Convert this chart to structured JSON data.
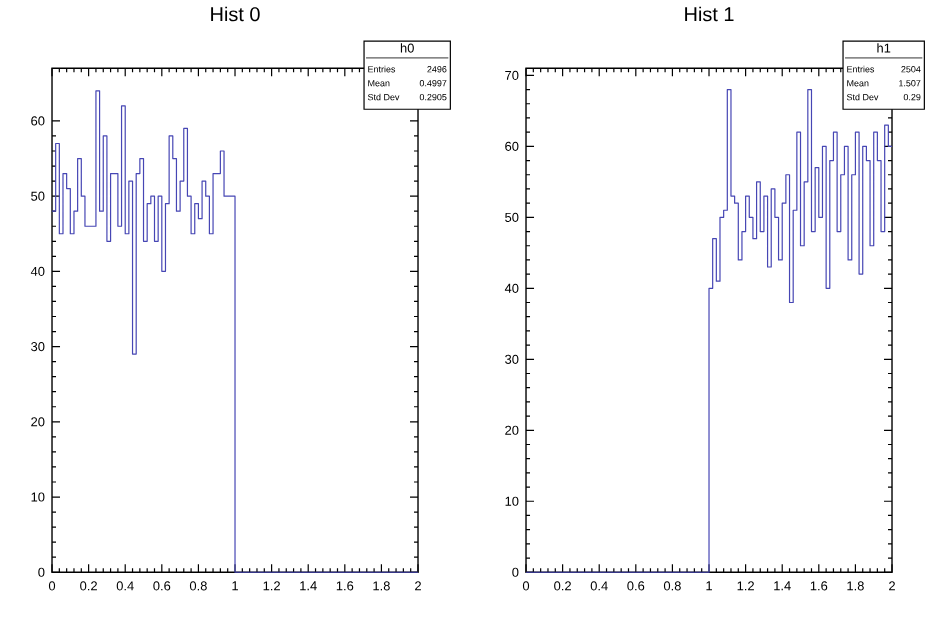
{
  "chart_data": [
    {
      "type": "histogram",
      "title": "Hist 0",
      "color": "#4646b4",
      "bins": [
        0,
        0.02,
        0.04,
        0.06,
        0.08,
        0.1,
        0.12,
        0.14,
        0.16,
        0.18,
        0.2,
        0.22,
        0.24,
        0.26,
        0.28,
        0.3,
        0.32,
        0.34,
        0.36,
        0.38,
        0.4,
        0.42,
        0.44,
        0.46,
        0.48,
        0.5,
        0.52,
        0.54,
        0.56,
        0.58,
        0.6,
        0.62,
        0.64,
        0.66,
        0.68,
        0.7,
        0.72,
        0.74,
        0.76,
        0.78,
        0.8,
        0.82,
        0.84,
        0.86,
        0.88,
        0.9,
        0.92,
        0.94,
        0.96,
        0.98,
        1,
        1.02,
        1.04,
        1.06,
        1.08,
        1.1,
        1.12,
        1.14,
        1.16,
        1.18,
        1.2,
        1.22,
        1.24,
        1.26,
        1.28,
        1.3,
        1.32,
        1.34,
        1.36,
        1.38,
        1.4,
        1.42,
        1.44,
        1.46,
        1.48,
        1.5,
        1.52,
        1.54,
        1.56,
        1.58,
        1.6,
        1.62,
        1.64,
        1.66,
        1.68,
        1.7,
        1.72,
        1.74,
        1.76,
        1.78,
        1.8,
        1.82,
        1.84,
        1.86,
        1.88,
        1.9,
        1.92,
        1.94,
        1.96,
        1.98,
        2
      ],
      "values": [
        48,
        57,
        45,
        53,
        51,
        45,
        48,
        55,
        50,
        46,
        46,
        46,
        64,
        48,
        58,
        44,
        53,
        53,
        46,
        62,
        45,
        52,
        29,
        53,
        55,
        44,
        49,
        50,
        44,
        50,
        40,
        49,
        58,
        55,
        48,
        52,
        59,
        50,
        45,
        49,
        47,
        52,
        50,
        45,
        53,
        53,
        56,
        50,
        50,
        50,
        0,
        0,
        0,
        0,
        0,
        0,
        0,
        0,
        0,
        0,
        0,
        0,
        0,
        0,
        0,
        0,
        0,
        0,
        0,
        0,
        0,
        0,
        0,
        0,
        0,
        0,
        0,
        0,
        0,
        0,
        0,
        0,
        0,
        0,
        0,
        0,
        0,
        0,
        0,
        0,
        0,
        0,
        0,
        0,
        0,
        0,
        0,
        0,
        0,
        0
      ],
      "xlim": [
        0,
        2
      ],
      "ylim": [
        0,
        67
      ],
      "xticks": [
        0,
        0.2,
        0.4,
        0.6,
        0.8,
        1,
        1.2,
        1.4,
        1.6,
        1.8,
        2
      ],
      "yticks": [
        0,
        10,
        20,
        30,
        40,
        50,
        60
      ],
      "annotations": [
        "h0",
        "Entries",
        "2496",
        "Mean",
        "0.4997",
        "Std Dev",
        "0.2905"
      ]
    },
    {
      "type": "histogram",
      "title": "Hist 1",
      "color": "#4646b4",
      "bins": [
        0,
        0.02,
        0.04,
        0.06,
        0.08,
        0.1,
        0.12,
        0.14,
        0.16,
        0.18,
        0.2,
        0.22,
        0.24,
        0.26,
        0.28,
        0.3,
        0.32,
        0.34,
        0.36,
        0.38,
        0.4,
        0.42,
        0.44,
        0.46,
        0.48,
        0.5,
        0.52,
        0.54,
        0.56,
        0.58,
        0.6,
        0.62,
        0.64,
        0.66,
        0.68,
        0.7,
        0.72,
        0.74,
        0.76,
        0.78,
        0.8,
        0.82,
        0.84,
        0.86,
        0.88,
        0.9,
        0.92,
        0.94,
        0.96,
        0.98,
        1,
        1.02,
        1.04,
        1.06,
        1.08,
        1.1,
        1.12,
        1.14,
        1.16,
        1.18,
        1.2,
        1.22,
        1.24,
        1.26,
        1.28,
        1.3,
        1.32,
        1.34,
        1.36,
        1.38,
        1.4,
        1.42,
        1.44,
        1.46,
        1.48,
        1.5,
        1.52,
        1.54,
        1.56,
        1.58,
        1.6,
        1.62,
        1.64,
        1.66,
        1.68,
        1.7,
        1.72,
        1.74,
        1.76,
        1.78,
        1.8,
        1.82,
        1.84,
        1.86,
        1.88,
        1.9,
        1.92,
        1.94,
        1.96,
        1.98,
        2
      ],
      "values": [
        0,
        0,
        0,
        0,
        0,
        0,
        0,
        0,
        0,
        0,
        0,
        0,
        0,
        0,
        0,
        0,
        0,
        0,
        0,
        0,
        0,
        0,
        0,
        0,
        0,
        0,
        0,
        0,
        0,
        0,
        0,
        0,
        0,
        0,
        0,
        0,
        0,
        0,
        0,
        0,
        0,
        0,
        0,
        0,
        0,
        0,
        0,
        0,
        0,
        0,
        40,
        47,
        41,
        50,
        51,
        68,
        53,
        52,
        44,
        48,
        53,
        50,
        47,
        55,
        48,
        53,
        43,
        54,
        50,
        44,
        52,
        56,
        38,
        51,
        62,
        46,
        55,
        68,
        48,
        57,
        50,
        60,
        40,
        58,
        62,
        48,
        56,
        60,
        44,
        56,
        62,
        42,
        60,
        58,
        46,
        62,
        58,
        48,
        63,
        60
      ],
      "xlim": [
        0,
        2
      ],
      "ylim": [
        0,
        71
      ],
      "xticks": [
        0,
        0.2,
        0.4,
        0.6,
        0.8,
        1,
        1.2,
        1.4,
        1.6,
        1.8,
        2
      ],
      "yticks": [
        0,
        10,
        20,
        30,
        40,
        50,
        60,
        70
      ],
      "annotations": [
        "h1",
        "Entries",
        "2504",
        "Mean",
        "1.507",
        "Std Dev",
        "0.29"
      ]
    }
  ]
}
